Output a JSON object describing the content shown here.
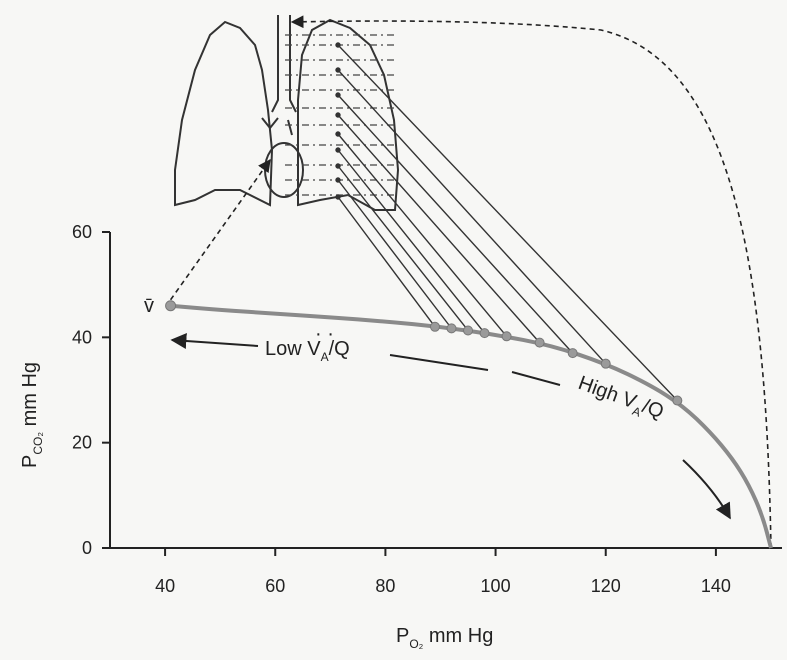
{
  "chart_data": {
    "type": "line",
    "xlabel": {
      "main": "P",
      "sub": "O₂",
      "unit": " mm Hg"
    },
    "ylabel": {
      "main": "P",
      "sub": "CO₂",
      "unit": " mm Hg"
    },
    "xlim": [
      30,
      152
    ],
    "ylim": [
      0,
      60
    ],
    "x_ticks": [
      40,
      60,
      80,
      100,
      120,
      140
    ],
    "y_ticks": [
      0,
      20,
      40,
      60
    ],
    "series": [
      {
        "curve": [
          [
            41,
            46
          ],
          [
            50,
            45.2
          ],
          [
            60,
            44.5
          ],
          [
            70,
            43.8
          ],
          [
            80,
            43
          ],
          [
            90,
            42
          ],
          [
            100,
            40.5
          ],
          [
            110,
            38.5
          ],
          [
            120,
            35
          ],
          [
            128,
            31
          ],
          [
            134,
            27
          ],
          [
            139,
            22
          ],
          [
            143,
            17
          ],
          [
            146,
            12
          ],
          [
            148.5,
            6
          ],
          [
            150,
            0
          ]
        ],
        "points": [
          [
            41,
            46
          ],
          [
            89,
            42
          ],
          [
            92,
            41.7
          ],
          [
            95,
            41.3
          ],
          [
            98,
            40.8
          ],
          [
            102,
            40.2
          ],
          [
            108,
            39
          ],
          [
            114,
            37
          ],
          [
            120,
            35
          ],
          [
            133,
            28
          ]
        ]
      }
    ],
    "annotations": {
      "v_label": "v̄",
      "low": {
        "text": "Low ",
        "v": "V",
        "sub": "A",
        "slash": "/",
        "q": "Q"
      },
      "high": {
        "text": "High ",
        "v": "V",
        "sub": "A",
        "slash": "/",
        "q": "Q"
      }
    },
    "colors": {
      "curve": "#8a8a8a",
      "points": "#9a9a9a",
      "ink": "#222222"
    }
  }
}
